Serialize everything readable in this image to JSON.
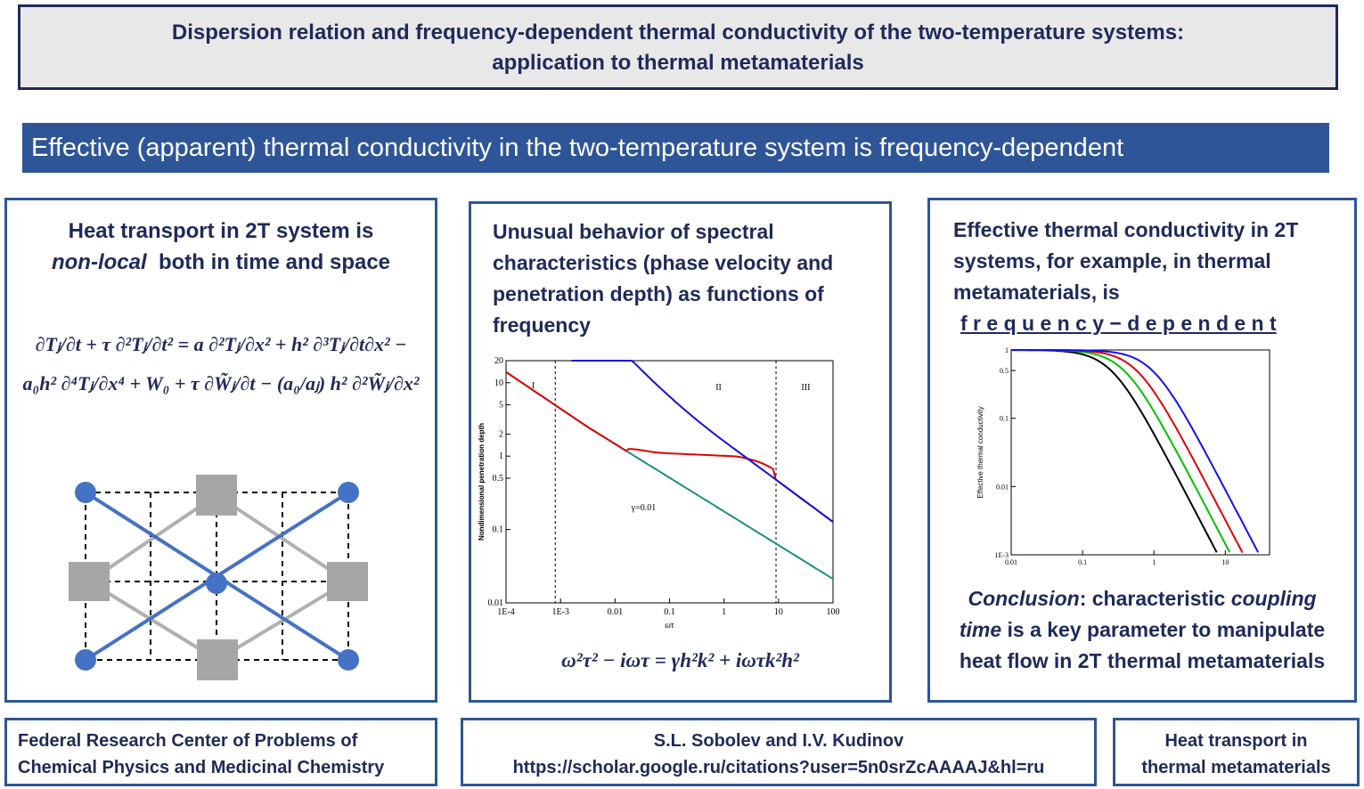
{
  "header": {
    "title": [
      "Dispersion relation and frequency-dependent thermal conductivity of the two-temperature systems:",
      "application to thermal metamaterials"
    ]
  },
  "banner": "Effective (apparent) thermal conductivity in the two-temperature system is frequency-dependent",
  "left": {
    "heading": [
      "Heat transport in 2T system is",
      "non-local",
      "both in time and space"
    ],
    "equation": [
      "∂Tⱼ/∂t + τ ∂²Tⱼ/∂t² = a ∂²Tⱼ/∂x² + h² ∂³Tⱼ/∂t∂x² −",
      "a₀h² ∂⁴Tⱼ/∂x⁴ + W₀ + τ ∂W̃ⱼ/∂t − (a₀/aⱼ) h² ∂²W̃ⱼ/∂x²"
    ]
  },
  "middle": {
    "heading": [
      "Unusual behavior of spectral",
      "characteristics (phase velocity and",
      "penetration depth) as functions of",
      "frequency"
    ],
    "plot": {
      "ylabel": "Nondimensional penetration depth",
      "xlabel": "ωτ",
      "xticks": [
        "1E-4",
        "1E-3",
        "0.01",
        "0.1",
        "1",
        "10",
        "100"
      ],
      "yticks": [
        "20",
        "10",
        "5",
        "2",
        "1",
        "0.5",
        "0.1",
        "0.01"
      ],
      "regions": [
        "I",
        "II",
        "III"
      ],
      "annotation": "γ=0.01"
    },
    "equation": "ω²τ² − iωτ = γh²k² + iωτk²h²"
  },
  "right": {
    "heading": [
      "Effective thermal conductivity in 2T",
      "systems, for example, in thermal",
      "metamaterials,  is"
    ],
    "emphasis": "f r e q u e n c y − d e p e n d e n t",
    "plot": {
      "ylabel": "Effective thermal conductivity",
      "xticks": [
        "0.01",
        "0.1",
        "1",
        "10"
      ],
      "yticks": [
        "1",
        "0.5",
        "0.1",
        "0.01",
        "1E-3"
      ]
    },
    "conclusion": [
      "Conclusion",
      ": characteristic ",
      "coupling time",
      " is a key parameter to manipulate heat flow in 2T thermal metamaterials"
    ]
  },
  "footer": {
    "institution": [
      "Federal Research Center of Problems  of",
      "Chemical Physics and Medicinal Chemistry"
    ],
    "authors": [
      "S.L. Sobolev and I.V. Kudinov",
      "https://scholar.google.ru/citations?user=5n0srZcAAAAJ&hl=ru"
    ],
    "topic": [
      "Heat transport in",
      "thermal metamaterials"
    ]
  }
}
